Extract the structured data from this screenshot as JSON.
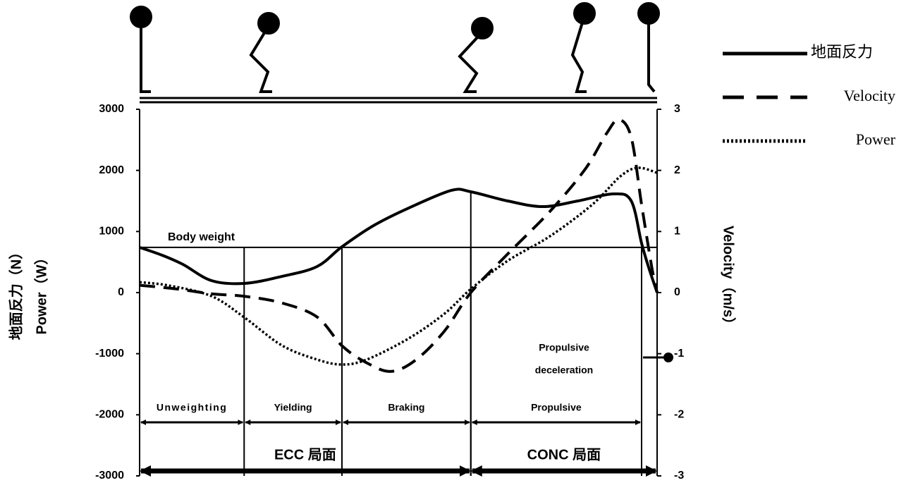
{
  "chart_data": {
    "type": "line",
    "ylabel": [
      "地面反力（N）",
      "Power（W）"
    ],
    "y2label": "Velocity（m/s）",
    "xlim": [
      0,
      100
    ],
    "ylim": [
      -3000,
      3000
    ],
    "yticks": [
      3000,
      2000,
      1000,
      0,
      -1000,
      -2000,
      -3000
    ],
    "y2lim": [
      -3,
      3
    ],
    "y2ticks": [
      3,
      2,
      1,
      0,
      -1,
      -2,
      -3
    ],
    "series": [
      {
        "name": "地面反力",
        "color": "#000000",
        "dash": "solid",
        "x": [
          0,
          4.4,
          8.4,
          13.9,
          20.2,
          27.5,
          34.3,
          39.1,
          45.2,
          52.0,
          60.2,
          64.0,
          71.1,
          77.9,
          84.7,
          91.6,
          95.0,
          97.0,
          98.4,
          100
        ],
        "values": [
          740,
          610,
          460,
          196,
          150,
          265,
          427,
          750,
          1096,
          1384,
          1672,
          1650,
          1500,
          1407,
          1500,
          1615,
          1500,
          807,
          404,
          0
        ]
      },
      {
        "name": "Velocity",
        "color": "#000000",
        "dash": "dashed",
        "axis": "y2",
        "x": [
          0,
          7.1,
          13.9,
          20.2,
          27.5,
          34.3,
          39.1,
          43.9,
          48.6,
          53.4,
          58.9,
          64.0,
          71.1,
          79.3,
          86.1,
          90.2,
          92.6,
          95.0,
          97.0,
          99.0,
          100
        ],
        "values": [
          0.12,
          0.06,
          -0.02,
          -0.06,
          -0.17,
          -0.4,
          -0.87,
          -1.15,
          -1.29,
          -1.1,
          -0.63,
          0,
          0.63,
          1.33,
          2.02,
          2.6,
          2.83,
          2.54,
          1.44,
          0.4,
          0
        ]
      },
      {
        "name": "Power",
        "color": "#000000",
        "dash": "dotted",
        "x": [
          0,
          5.7,
          13.9,
          20.2,
          27.5,
          34.3,
          39.1,
          43.9,
          52.0,
          58.9,
          64.0,
          71.1,
          79.3,
          87.5,
          92.9,
          96.3,
          100
        ],
        "values": [
          170,
          115,
          -58,
          -404,
          -865,
          -1096,
          -1177,
          -1096,
          -750,
          -346,
          58,
          519,
          923,
          1442,
          1903,
          2042,
          1961
        ]
      }
    ],
    "body_weight": {
      "label": "Body weight",
      "value": 740
    },
    "phases": {
      "bounds": [
        0,
        20.2,
        39.1,
        64.0,
        97.0
      ],
      "labels": [
        "Unweighting",
        "Yielding",
        "Braking",
        "Propulsive"
      ]
    },
    "phase_note": [
      "Propulsive",
      "deceleration"
    ],
    "stages": {
      "bounds": [
        0,
        64.0,
        100
      ],
      "labels": [
        "ECC 局面",
        "CONC 局面"
      ]
    }
  }
}
